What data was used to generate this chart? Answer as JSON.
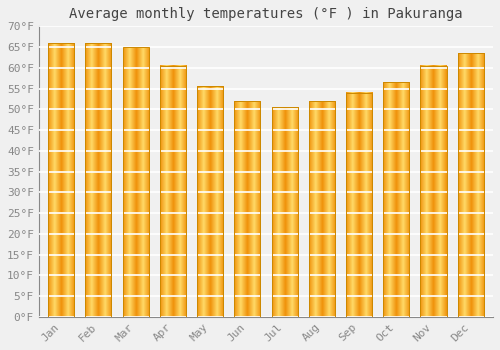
{
  "title": "Average monthly temperatures (°F ) in Pakuranga",
  "months": [
    "Jan",
    "Feb",
    "Mar",
    "Apr",
    "May",
    "Jun",
    "Jul",
    "Aug",
    "Sep",
    "Oct",
    "Nov",
    "Dec"
  ],
  "values": [
    66,
    66,
    65,
    60.5,
    55.5,
    52,
    50.5,
    52,
    54,
    56.5,
    60.5,
    63.5
  ],
  "bar_color_left": "#F5A800",
  "bar_color_center": "#FFD966",
  "bar_color_right": "#E8920A",
  "ylim": [
    0,
    70
  ],
  "yticks": [
    0,
    5,
    10,
    15,
    20,
    25,
    30,
    35,
    40,
    45,
    50,
    55,
    60,
    65,
    70
  ],
  "ytick_labels": [
    "0°F",
    "5°F",
    "10°F",
    "15°F",
    "20°F",
    "25°F",
    "30°F",
    "35°F",
    "40°F",
    "45°F",
    "50°F",
    "55°F",
    "60°F",
    "65°F",
    "70°F"
  ],
  "background_color": "#f0f0f0",
  "grid_color": "#ffffff",
  "bar_edge_color": "#CC8800",
  "title_fontsize": 10,
  "tick_fontsize": 8,
  "bar_width": 0.7,
  "figsize": [
    5.0,
    3.5
  ],
  "dpi": 100
}
